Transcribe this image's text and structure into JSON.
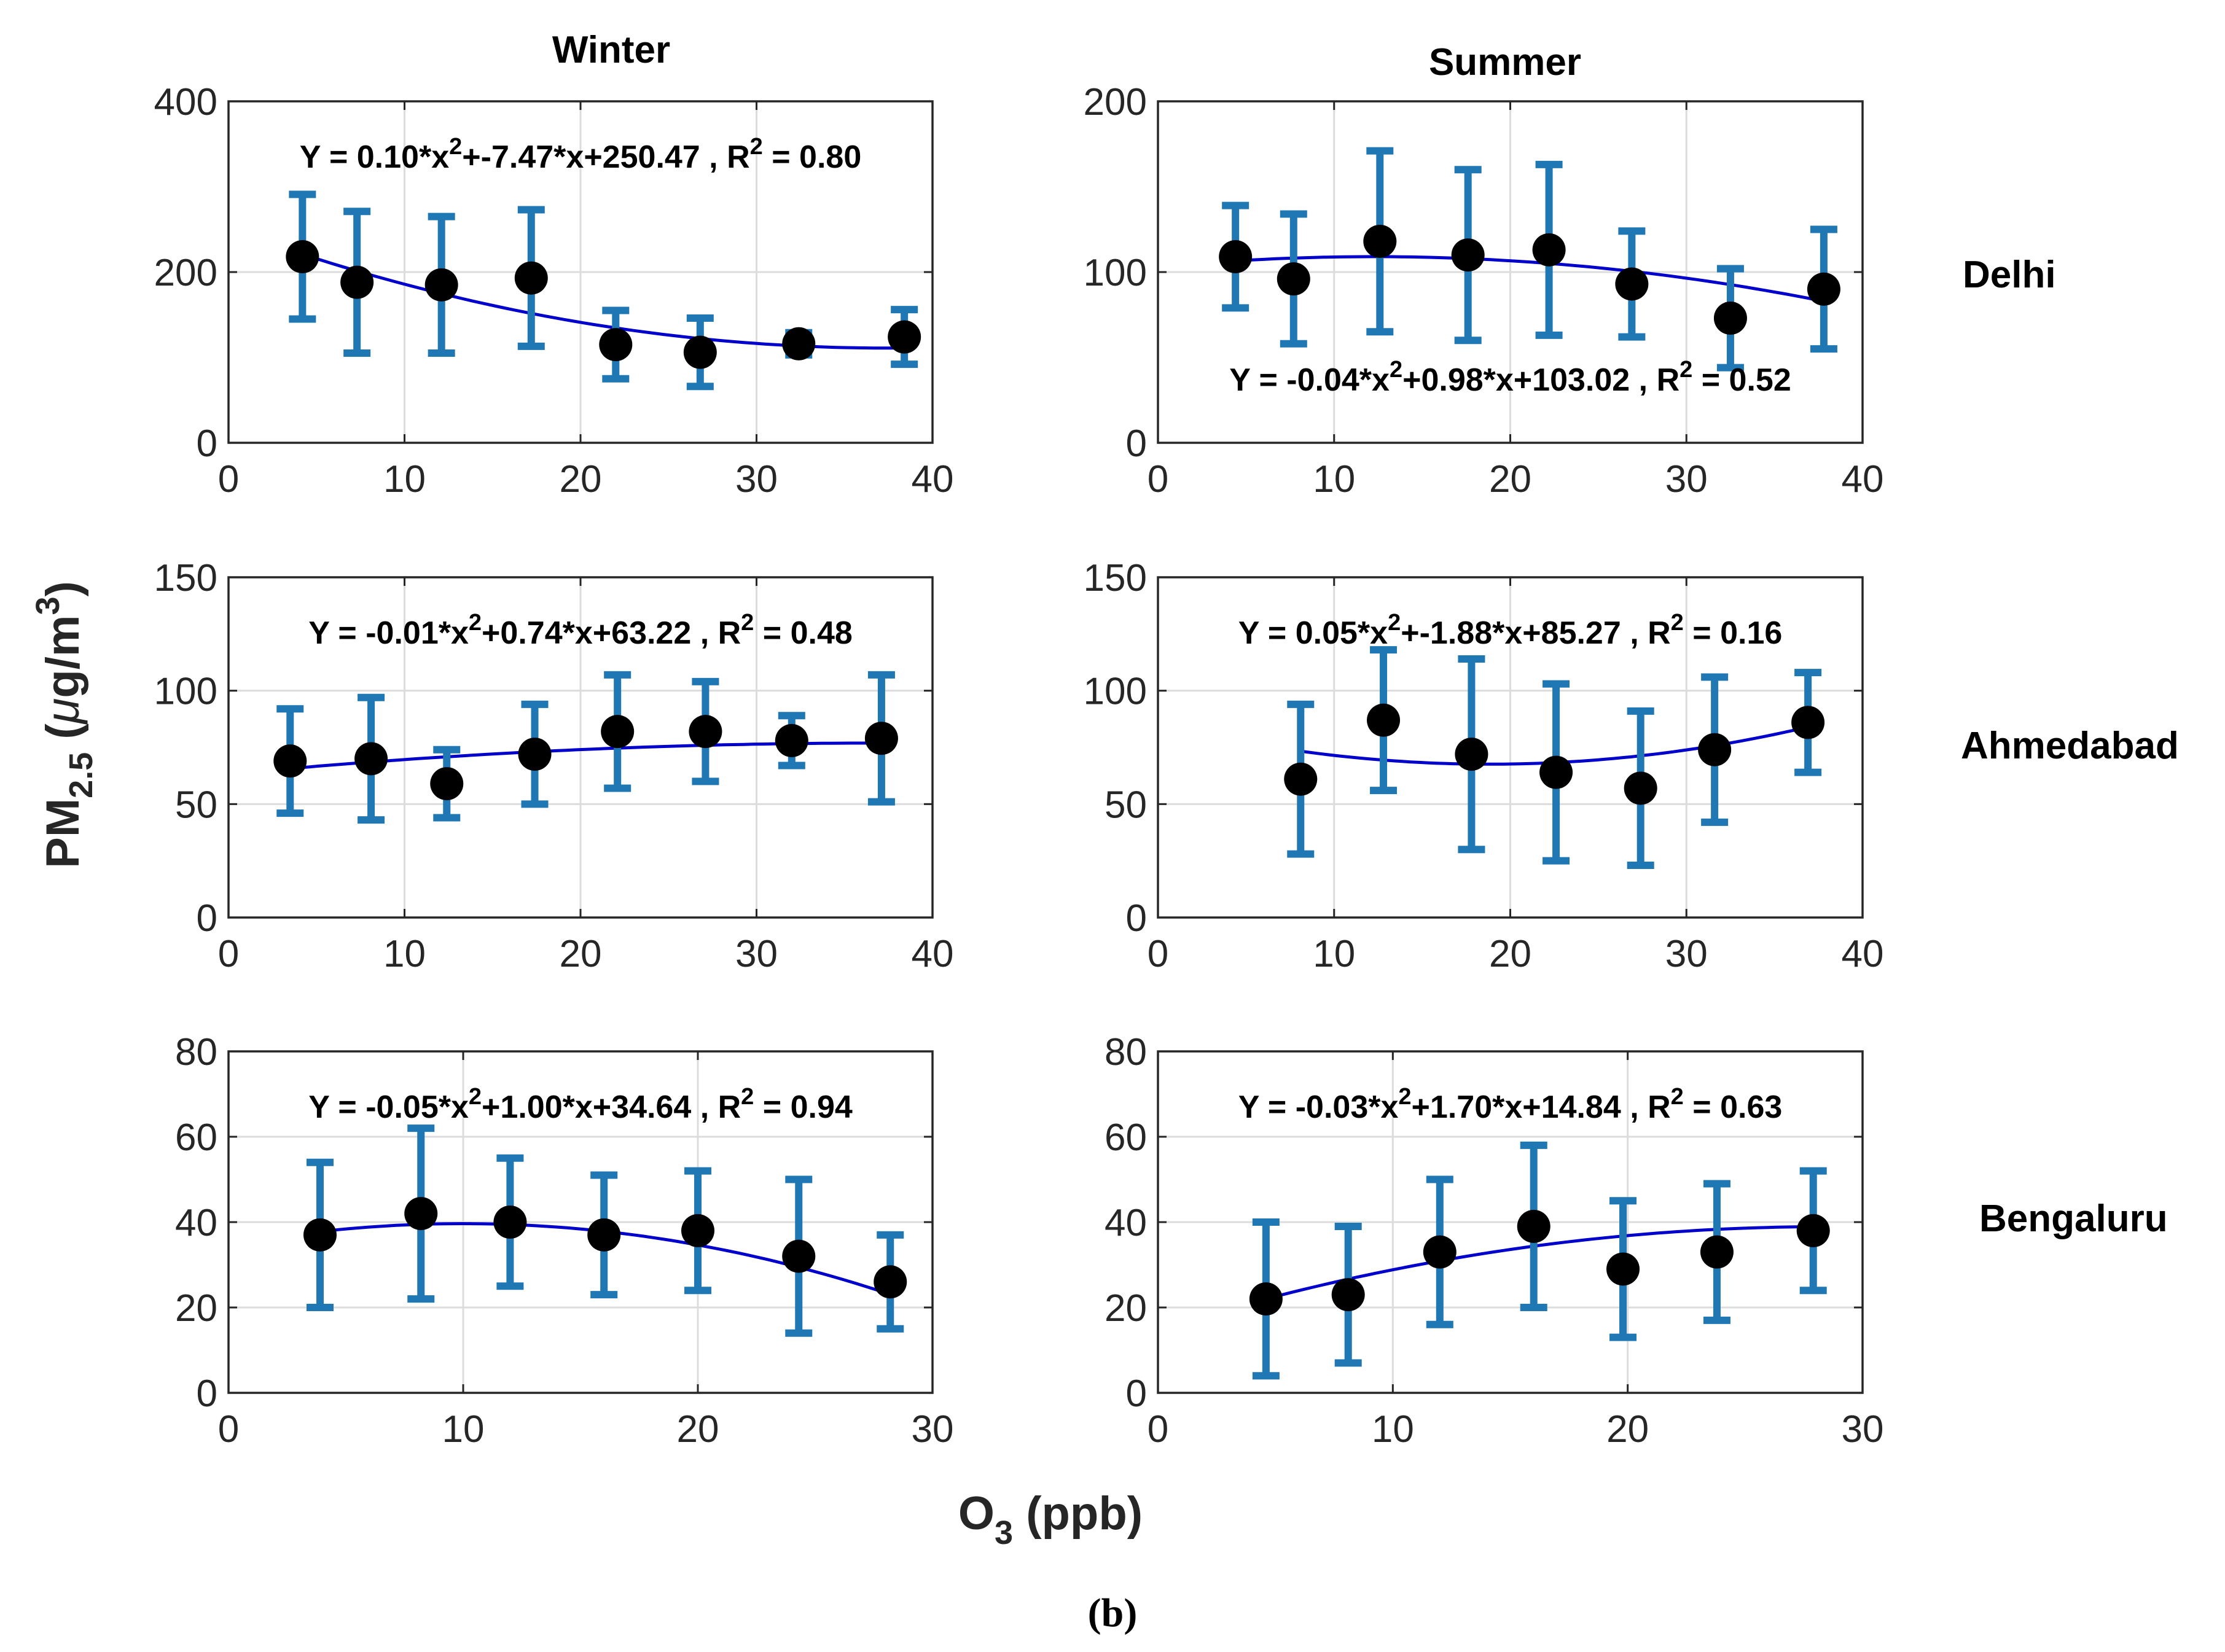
{
  "figure": {
    "col_titles": [
      "Winter",
      "Summer"
    ],
    "row_labels": [
      "Delhi",
      "Ahmedabad",
      "Bengaluru"
    ],
    "ylabel_main": "PM",
    "ylabel_sub": "2.5",
    "ylabel_unit_open": " (",
    "ylabel_unit_mu": "μ",
    "ylabel_unit_mid": "g/m",
    "ylabel_unit_sup": "3",
    "ylabel_unit_close": ")",
    "xlabel_main": "O",
    "xlabel_sub": "3",
    "xlabel_unit": " (ppb)",
    "caption": "(b)"
  },
  "colors": {
    "errorbar": "#1f77b4",
    "fit": "#0000cc",
    "marker": "#000000",
    "grid": "#dcdcdc",
    "axes": "#262626"
  },
  "chart_data": [
    {
      "type": "scatter",
      "title": "Delhi Winter",
      "xlim": [
        0,
        40
      ],
      "ylim": [
        0,
        400
      ],
      "xticks": [
        0,
        10,
        20,
        30,
        40
      ],
      "yticks": [
        0,
        200,
        400
      ],
      "x": [
        4.2,
        7.3,
        12.1,
        17.2,
        22.0,
        26.8,
        32.4,
        38.4
      ],
      "y": [
        218,
        188,
        185,
        193,
        115,
        106,
        116,
        124
      ],
      "err": [
        73,
        83,
        80,
        80,
        40,
        40,
        13,
        32
      ],
      "fit": [
        0.1,
        -7.47,
        250.47
      ],
      "fit_range": [
        4.2,
        38.4
      ],
      "equation": {
        "pre": "Y = 0.10*x",
        "mid": "+-7.47*x+250.47 , R",
        "post": " = 0.80"
      },
      "equation_pos": "top"
    },
    {
      "type": "scatter",
      "title": "Delhi Summer",
      "xlim": [
        0,
        40
      ],
      "ylim": [
        0,
        200
      ],
      "xticks": [
        0,
        10,
        20,
        30,
        40
      ],
      "yticks": [
        0,
        100,
        200
      ],
      "x": [
        4.4,
        7.7,
        12.6,
        17.6,
        22.2,
        26.9,
        32.5,
        37.8
      ],
      "y": [
        109,
        96,
        118,
        110,
        113,
        93,
        73,
        90
      ],
      "err": [
        30,
        38,
        53,
        50,
        50,
        31,
        29,
        35
      ],
      "fit": [
        -0.04,
        0.98,
        103.02
      ],
      "fit_range": [
        4.4,
        37.8
      ],
      "equation": {
        "pre": "Y = -0.04*x",
        "mid": "+0.98*x+103.02 , R",
        "post": " = 0.52"
      },
      "equation_pos": "bottom"
    },
    {
      "type": "scatter",
      "title": "Ahmedabad Winter",
      "xlim": [
        0,
        40
      ],
      "ylim": [
        0,
        150
      ],
      "xticks": [
        0,
        10,
        20,
        30,
        40
      ],
      "yticks": [
        0,
        50,
        100,
        150
      ],
      "x": [
        3.5,
        8.1,
        12.4,
        17.4,
        22.1,
        27.1,
        32.0,
        37.1
      ],
      "y": [
        69,
        70,
        59,
        72,
        82,
        82,
        78,
        79
      ],
      "err": [
        23,
        27,
        15,
        22,
        25,
        22,
        11,
        28
      ],
      "fit": [
        -0.01,
        0.74,
        63.22
      ],
      "fit_range": [
        3.5,
        37.1
      ],
      "equation": {
        "pre": "Y = -0.01*x",
        "mid": "+0.74*x+63.22 , R",
        "post": " = 0.48"
      },
      "equation_pos": "top"
    },
    {
      "type": "scatter",
      "title": "Ahmedabad Summer",
      "xlim": [
        0,
        40
      ],
      "ylim": [
        0,
        150
      ],
      "xticks": [
        0,
        10,
        20,
        30,
        40
      ],
      "yticks": [
        0,
        50,
        100,
        150
      ],
      "x": [
        8.1,
        12.8,
        17.8,
        22.6,
        27.4,
        31.6,
        36.9
      ],
      "y": [
        61,
        87,
        72,
        64,
        57,
        74,
        86
      ],
      "err": [
        33,
        31,
        42,
        39,
        34,
        32,
        22
      ],
      "fit": [
        0.05,
        -1.88,
        85.27
      ],
      "fit_range": [
        8.1,
        36.9
      ],
      "equation": {
        "pre": "Y = 0.05*x",
        "mid": "+-1.88*x+85.27 , R",
        "post": " = 0.16"
      },
      "equation_pos": "top"
    },
    {
      "type": "scatter",
      "title": "Bengaluru Winter",
      "xlim": [
        0,
        30
      ],
      "ylim": [
        0,
        80
      ],
      "xticks": [
        0,
        10,
        20,
        30
      ],
      "yticks": [
        0,
        20,
        40,
        60,
        80
      ],
      "x": [
        3.9,
        8.2,
        12.0,
        16.0,
        20.0,
        24.3,
        28.2
      ],
      "y": [
        37,
        42,
        40,
        37,
        38,
        32,
        26
      ],
      "err": [
        17,
        20,
        15,
        14,
        14,
        18,
        11
      ],
      "fit": [
        -0.05,
        1.0,
        34.64
      ],
      "fit_range": [
        3.9,
        28.2
      ],
      "equation": {
        "pre": "Y = -0.05*x",
        "mid": "+1.00*x+34.64 , R",
        "post": " = 0.94"
      },
      "equation_pos": "top"
    },
    {
      "type": "scatter",
      "title": "Bengaluru Summer",
      "xlim": [
        0,
        30
      ],
      "ylim": [
        0,
        80
      ],
      "xticks": [
        0,
        10,
        20,
        30
      ],
      "yticks": [
        0,
        20,
        40,
        60,
        80
      ],
      "x": [
        4.6,
        8.1,
        12.0,
        16.0,
        19.8,
        23.8,
        27.9
      ],
      "y": [
        22,
        23,
        33,
        39,
        29,
        33,
        38
      ],
      "err": [
        18,
        16,
        17,
        19,
        16,
        16,
        14
      ],
      "fit": [
        -0.03,
        1.7,
        14.84
      ],
      "fit_range": [
        4.6,
        27.9
      ],
      "equation": {
        "pre": "Y = -0.03*x",
        "mid": "+1.70*x+14.84 , R",
        "post": " = 0.63"
      },
      "equation_pos": "top"
    }
  ]
}
